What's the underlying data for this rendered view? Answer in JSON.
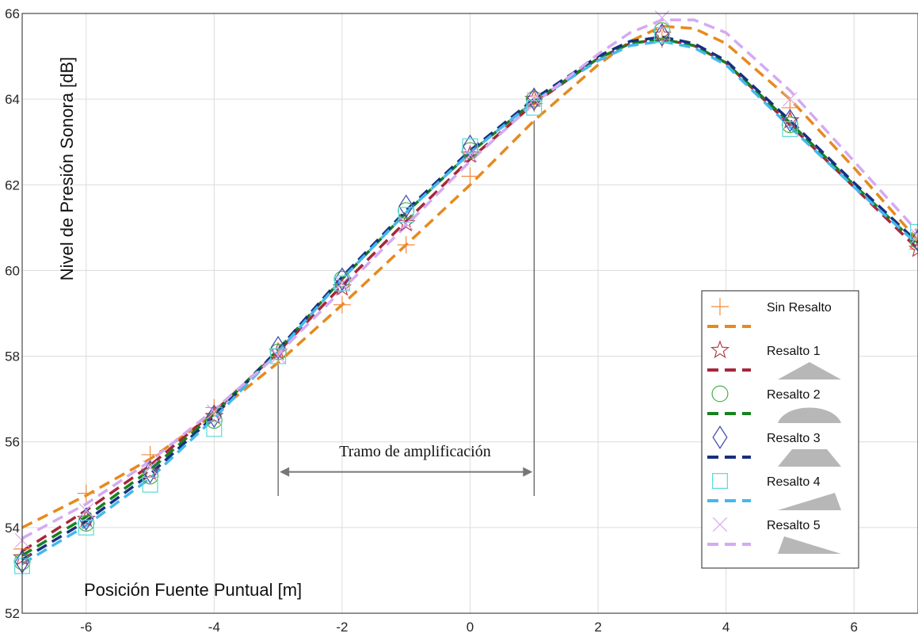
{
  "chart_data": {
    "type": "line",
    "xlabel": "Posición Fuente Puntual [m]",
    "ylabel": "Nivel de Presión Sonora [dB]",
    "xlim": [
      -7,
      7
    ],
    "ylim": [
      52,
      66
    ],
    "xticks": [
      -6,
      -4,
      -2,
      0,
      2,
      4,
      6
    ],
    "yticks": [
      52,
      54,
      56,
      58,
      60,
      62,
      64,
      66
    ],
    "grid": true,
    "legend_position": "right",
    "annotation": {
      "text": "Tramo de amplificación",
      "x_start": -3,
      "x_end": 1
    },
    "series": [
      {
        "name": "Sin Resalto",
        "marker": "plus",
        "color": "#f08a3c",
        "line_color": "#e68a1e",
        "shape": "none",
        "points_x": [
          -7,
          -6,
          -5,
          -4,
          -3,
          -2,
          -1,
          0,
          1,
          3,
          5,
          7
        ],
        "points_y": [
          53.5,
          54.8,
          55.7,
          56.8,
          58.0,
          59.2,
          60.6,
          62.2,
          63.9,
          65.4,
          63.8,
          60.5
        ],
        "curve_x": [
          -7,
          -6,
          -5,
          -4,
          -3,
          -2,
          -1,
          0,
          1,
          2,
          2.5,
          3,
          3.5,
          4,
          5,
          6,
          7
        ],
        "curve_y": [
          54.0,
          54.75,
          55.6,
          56.65,
          57.85,
          59.2,
          60.6,
          62.0,
          63.5,
          64.8,
          65.35,
          65.7,
          65.65,
          65.3,
          64.0,
          62.4,
          60.7
        ]
      },
      {
        "name": "Resalto 1",
        "marker": "star",
        "color": "#b5444e",
        "line_color": "#a7263a",
        "shape": "triangle",
        "points_x": [
          -7,
          -6,
          -5,
          -4,
          -3,
          -2,
          -1,
          0,
          1,
          3,
          5,
          7
        ],
        "points_y": [
          53.3,
          54.2,
          55.3,
          56.6,
          58.1,
          59.6,
          61.1,
          62.7,
          64.0,
          65.5,
          63.5,
          60.5
        ],
        "curve_x": [
          -7,
          -6,
          -5,
          -4,
          -3,
          -2,
          -1,
          0,
          1,
          2,
          2.5,
          3,
          3.5,
          4,
          5,
          6,
          7
        ],
        "curve_y": [
          53.45,
          54.4,
          55.45,
          56.7,
          58.1,
          59.65,
          61.15,
          62.6,
          63.9,
          64.95,
          65.3,
          65.4,
          65.25,
          64.85,
          63.4,
          61.95,
          60.5
        ]
      },
      {
        "name": "Resalto 2",
        "marker": "circle",
        "color": "#49b04a",
        "line_color": "#15821e",
        "shape": "dome",
        "points_x": [
          -7,
          -6,
          -5,
          -4,
          -3,
          -2,
          -1,
          0,
          1,
          3,
          5,
          7
        ],
        "points_y": [
          53.2,
          54.1,
          55.2,
          56.5,
          58.1,
          59.8,
          61.4,
          62.8,
          64.0,
          65.6,
          63.4,
          60.7
        ],
        "curve_x": [
          -7,
          -6,
          -5,
          -4,
          -3,
          -2,
          -1,
          0,
          1,
          2,
          2.5,
          3,
          3.5,
          4,
          5,
          6,
          7
        ],
        "curve_y": [
          53.35,
          54.25,
          55.35,
          56.65,
          58.15,
          59.8,
          61.35,
          62.75,
          63.95,
          64.95,
          65.3,
          65.4,
          65.25,
          64.85,
          63.45,
          62.0,
          60.6
        ]
      },
      {
        "name": "Resalto 3",
        "marker": "diamond",
        "color": "#3d4aa8",
        "line_color": "#17307e",
        "shape": "trapezoid",
        "points_x": [
          -7,
          -6,
          -5,
          -4,
          -3,
          -2,
          -1,
          0,
          1,
          3,
          5,
          7
        ],
        "points_y": [
          53.2,
          54.2,
          55.3,
          56.6,
          58.2,
          59.8,
          61.5,
          62.9,
          64.0,
          65.5,
          63.5,
          60.7
        ],
        "curve_x": [
          -7,
          -6,
          -5,
          -4,
          -3,
          -2,
          -1,
          0,
          1,
          2,
          2.5,
          3,
          3.5,
          4,
          5,
          6,
          7
        ],
        "curve_y": [
          53.25,
          54.15,
          55.25,
          56.6,
          58.15,
          59.85,
          61.4,
          62.8,
          64.0,
          65.0,
          65.35,
          65.45,
          65.3,
          64.9,
          63.5,
          62.05,
          60.65
        ]
      },
      {
        "name": "Resalto 4",
        "marker": "square",
        "color": "#58d8d8",
        "line_color": "#45b8ec",
        "shape": "ramp-up",
        "points_x": [
          -7,
          -6,
          -5,
          -4,
          -3,
          -2,
          -1,
          0,
          1,
          3,
          5,
          7
        ],
        "points_y": [
          53.1,
          54.0,
          55.0,
          56.3,
          58.0,
          59.7,
          61.3,
          62.9,
          63.8,
          65.5,
          63.3,
          60.9
        ],
        "curve_x": [
          -7,
          -6,
          -5,
          -4,
          -3,
          -2,
          -1,
          0,
          1,
          2,
          2.5,
          3,
          3.5,
          4,
          5,
          6,
          7
        ],
        "curve_y": [
          53.15,
          54.05,
          55.15,
          56.55,
          58.1,
          59.8,
          61.35,
          62.75,
          63.95,
          64.9,
          65.25,
          65.35,
          65.2,
          64.8,
          63.35,
          61.95,
          60.6
        ]
      },
      {
        "name": "Resalto 5",
        "marker": "x",
        "color": "#d8a8f0",
        "line_color": "#d4aaf2",
        "shape": "ramp-down",
        "points_x": [
          -7,
          -6,
          -5,
          -4,
          -3,
          -2,
          -1,
          0,
          1,
          3,
          5,
          7
        ],
        "points_y": [
          53.7,
          54.4,
          55.4,
          56.7,
          58.0,
          59.7,
          61.1,
          62.7,
          64.0,
          65.9,
          64.0,
          60.8
        ],
        "curve_x": [
          -7,
          -6,
          -5,
          -4,
          -3,
          -2,
          -1,
          0,
          1,
          2,
          2.5,
          3,
          3.5,
          4,
          5,
          6,
          7
        ],
        "curve_y": [
          53.75,
          54.55,
          55.55,
          56.75,
          58.05,
          59.55,
          61.05,
          62.55,
          63.9,
          65.05,
          65.55,
          65.85,
          65.85,
          65.55,
          64.2,
          62.55,
          60.9
        ]
      }
    ]
  }
}
